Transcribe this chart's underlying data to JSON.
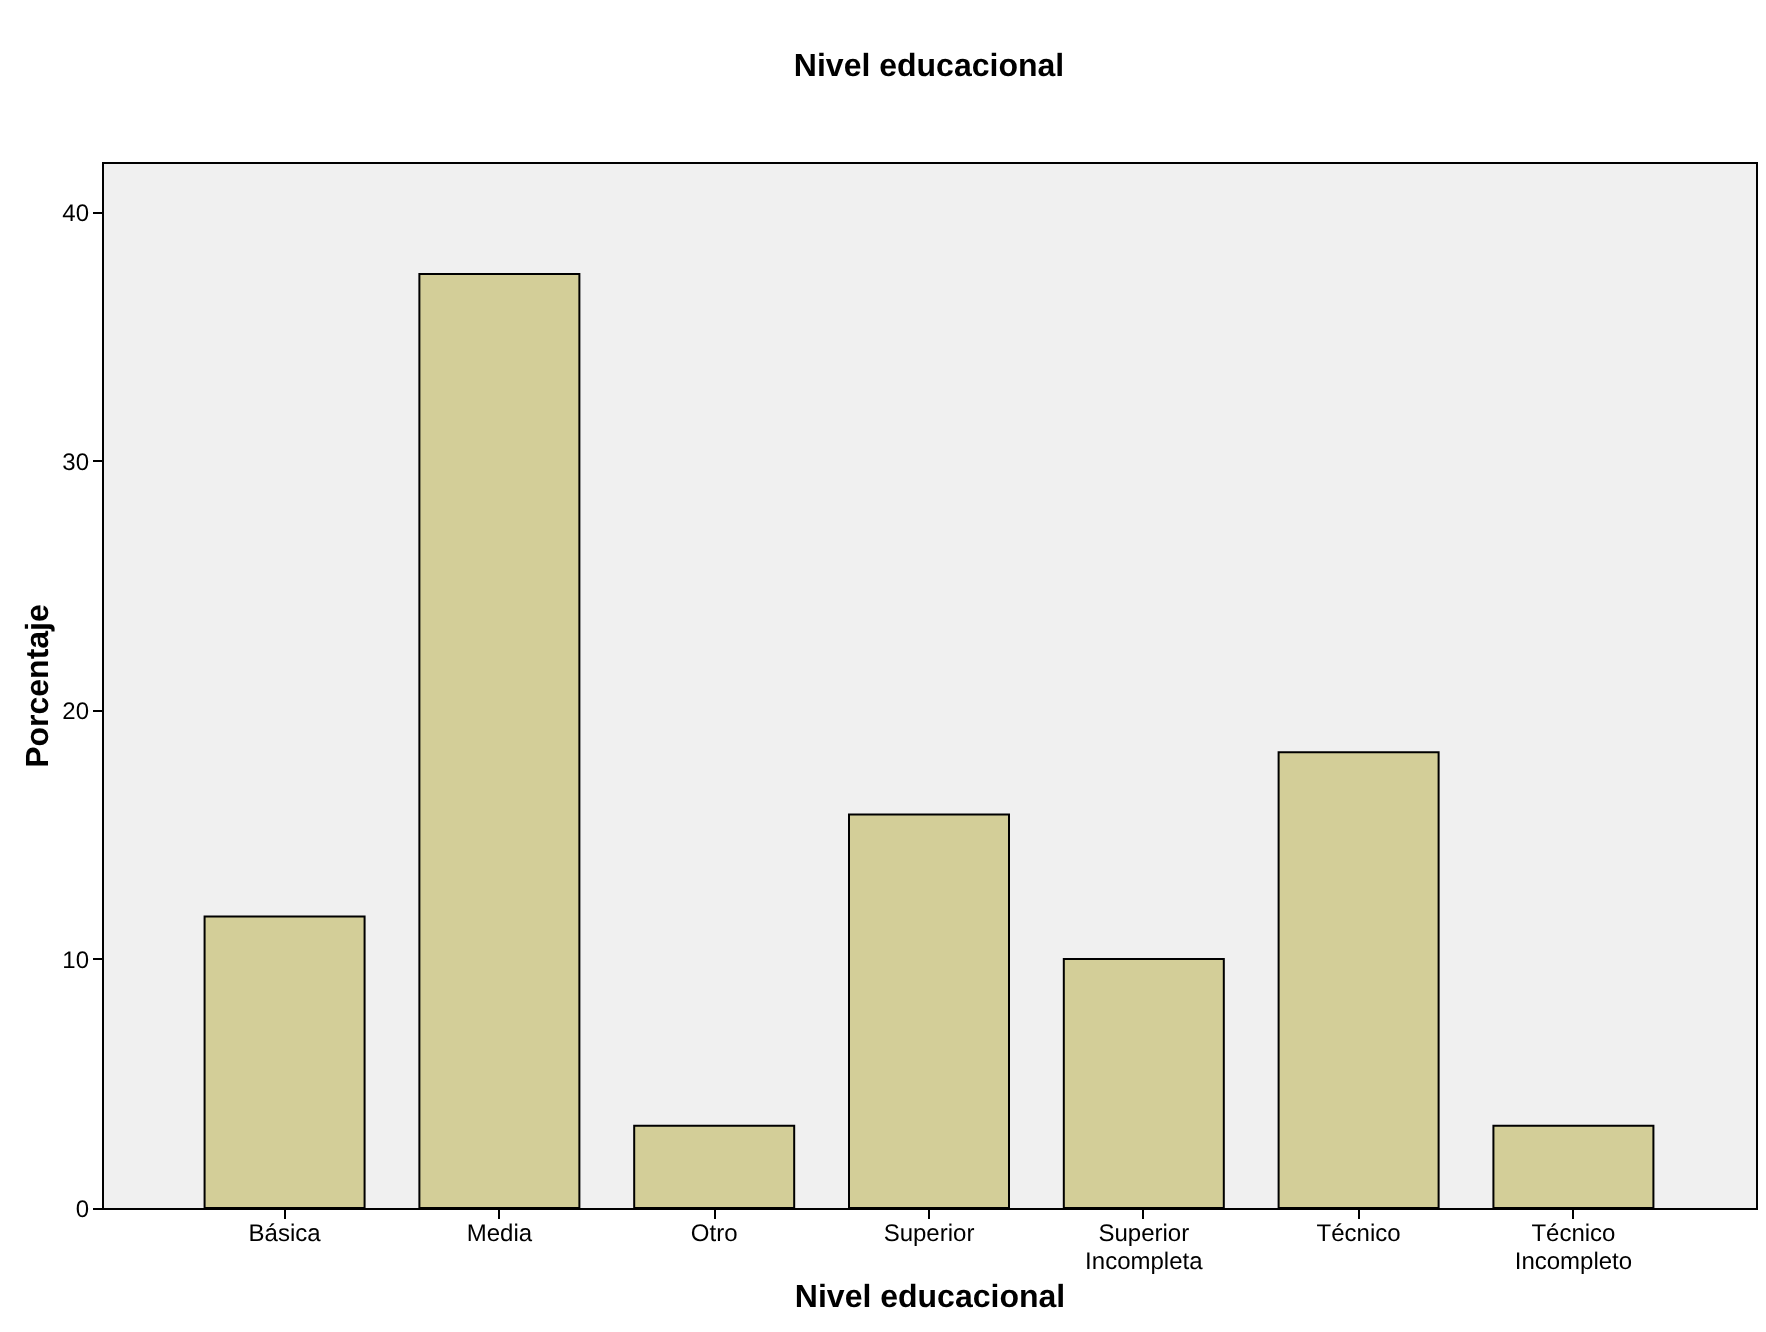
{
  "chart_data": {
    "type": "bar",
    "title": "Nivel educacional",
    "xlabel": "Nivel educacional",
    "ylabel": "Porcentaje",
    "categories": [
      "Básica",
      "Media",
      "Otro",
      "Superior",
      "Superior Incompleta",
      "Técnico",
      "Técnico Incompleto"
    ],
    "values": [
      11.7,
      37.5,
      3.3,
      15.8,
      10.0,
      18.3,
      3.3
    ],
    "color": "#d3ce98",
    "ylim": [
      0,
      42
    ],
    "yticks": [
      0,
      10,
      20,
      30,
      40
    ],
    "grid": false
  }
}
